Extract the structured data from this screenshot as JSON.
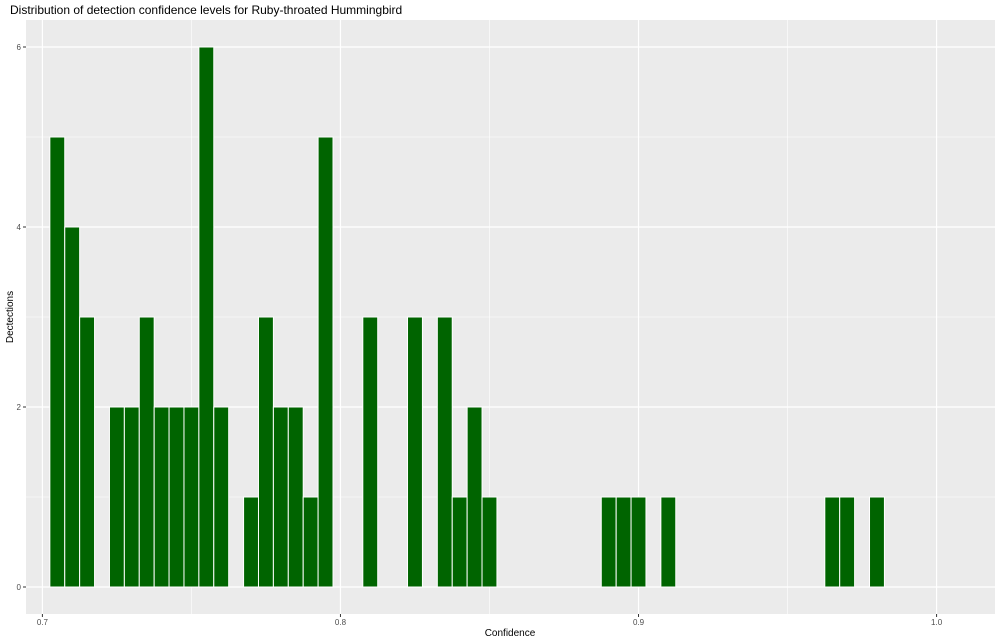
{
  "chart_data": {
    "type": "bar",
    "title": "Distribution of detection confidence levels for Ruby-throated Hummingbird",
    "xlabel": "Confidence",
    "ylabel": "Dectections",
    "xlim": [
      0.6945,
      1.0196
    ],
    "ylim": [
      -0.3,
      6.3
    ],
    "x_ticks": [
      0.7,
      0.8,
      0.9,
      1.0
    ],
    "x_tick_labels": [
      "0.7",
      "0.8",
      "0.9",
      "1.0"
    ],
    "y_ticks": [
      0,
      2,
      4,
      6
    ],
    "y_tick_labels": [
      "0",
      "2",
      "4",
      "6"
    ],
    "bin_width": 0.005,
    "bar_color": "#006400",
    "panel_color": "#ebebeb",
    "grid": true,
    "bins": [
      {
        "x": 0.705,
        "count": 5
      },
      {
        "x": 0.71,
        "count": 4
      },
      {
        "x": 0.715,
        "count": 3
      },
      {
        "x": 0.725,
        "count": 2
      },
      {
        "x": 0.73,
        "count": 2
      },
      {
        "x": 0.735,
        "count": 3
      },
      {
        "x": 0.74,
        "count": 2
      },
      {
        "x": 0.745,
        "count": 2
      },
      {
        "x": 0.75,
        "count": 2
      },
      {
        "x": 0.755,
        "count": 6
      },
      {
        "x": 0.76,
        "count": 2
      },
      {
        "x": 0.77,
        "count": 1
      },
      {
        "x": 0.775,
        "count": 3
      },
      {
        "x": 0.78,
        "count": 2
      },
      {
        "x": 0.785,
        "count": 2
      },
      {
        "x": 0.79,
        "count": 1
      },
      {
        "x": 0.795,
        "count": 5
      },
      {
        "x": 0.81,
        "count": 3
      },
      {
        "x": 0.825,
        "count": 3
      },
      {
        "x": 0.835,
        "count": 3
      },
      {
        "x": 0.84,
        "count": 1
      },
      {
        "x": 0.845,
        "count": 2
      },
      {
        "x": 0.85,
        "count": 1
      },
      {
        "x": 0.89,
        "count": 1
      },
      {
        "x": 0.895,
        "count": 1
      },
      {
        "x": 0.9,
        "count": 1
      },
      {
        "x": 0.91,
        "count": 1
      },
      {
        "x": 0.965,
        "count": 1
      },
      {
        "x": 0.97,
        "count": 1
      },
      {
        "x": 0.98,
        "count": 1
      }
    ]
  }
}
